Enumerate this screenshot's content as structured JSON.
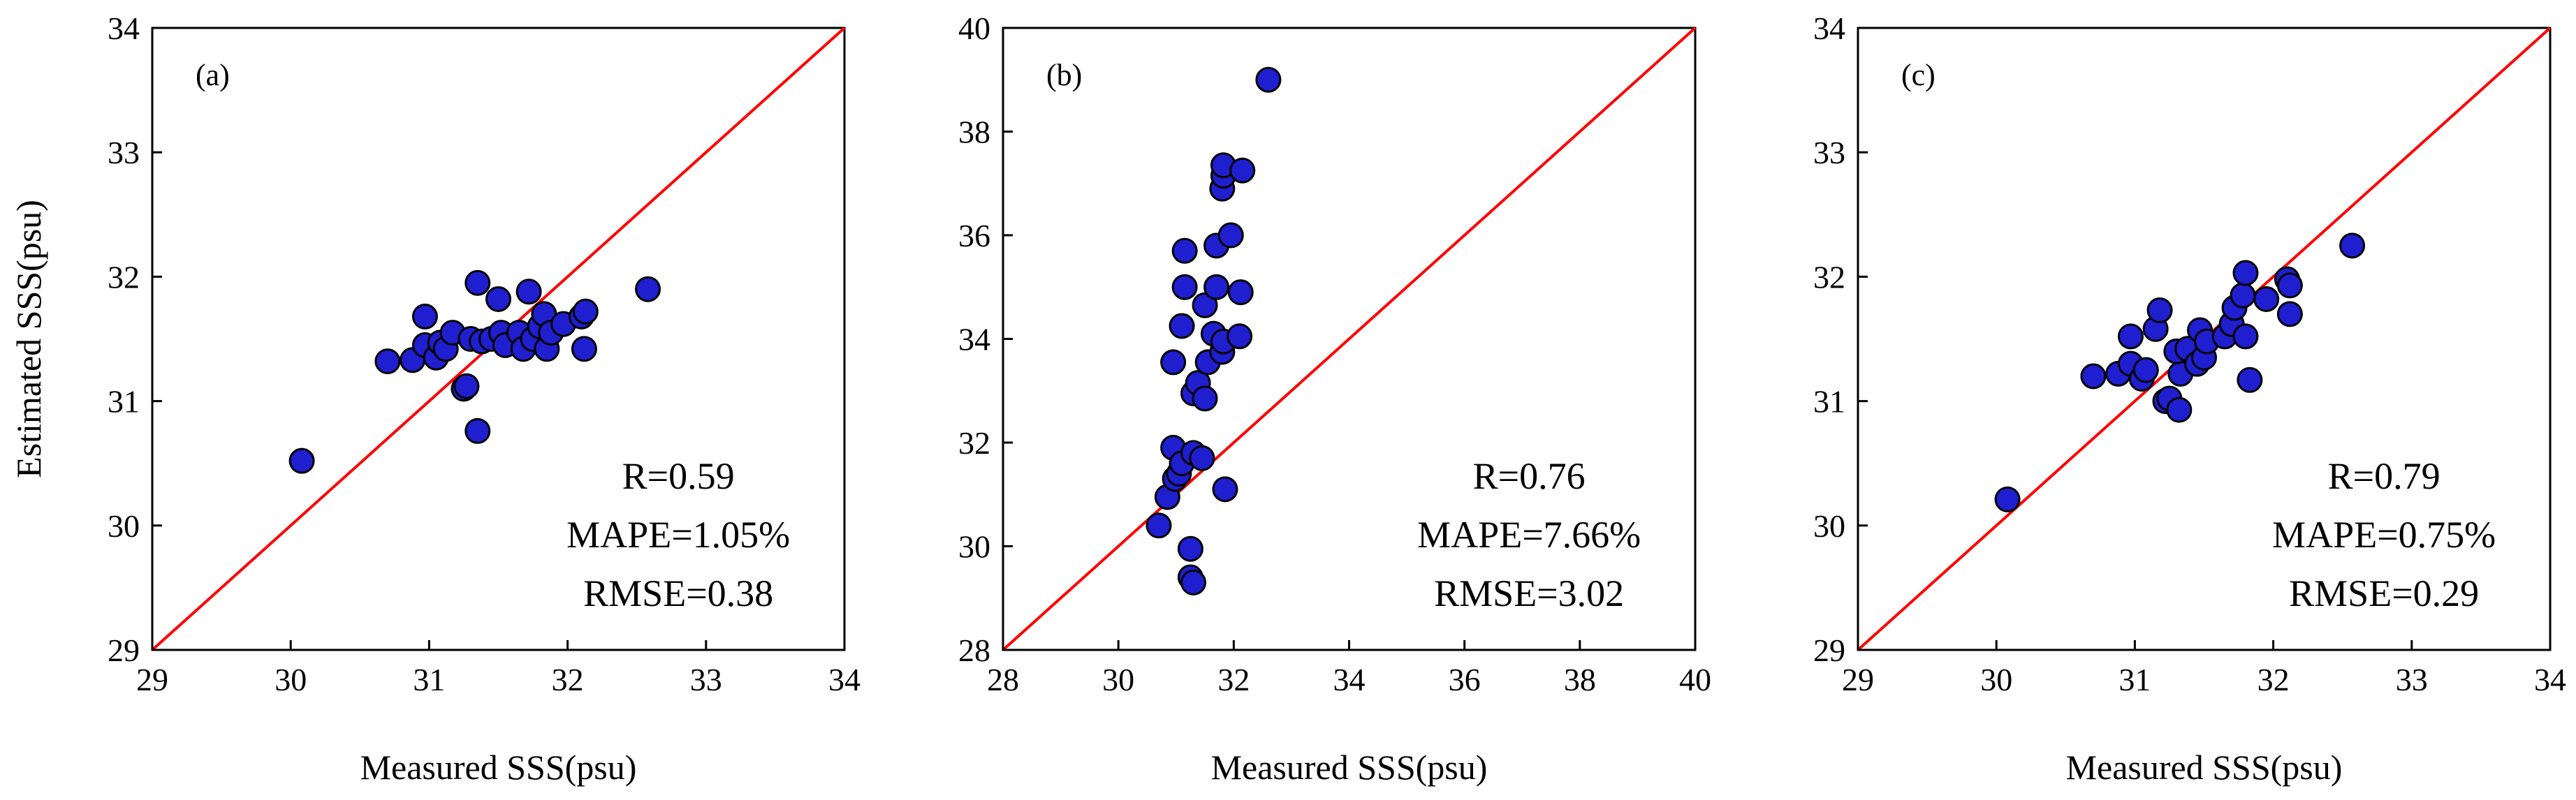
{
  "figure": {
    "background": "#ffffff",
    "marker_color": "#1f1fd0",
    "marker_edge": "#000000",
    "line_color": "#ff0000"
  },
  "chart_data": [
    {
      "type": "scatter",
      "panel_label": "(a)",
      "xlabel": "Measured SSS(psu)",
      "ylabel": "Estimated SSS(psu)",
      "xlim": [
        29,
        34
      ],
      "ylim": [
        29,
        34
      ],
      "xticks": [
        "29",
        "30",
        "31",
        "32",
        "33",
        "34"
      ],
      "yticks": [
        "29",
        "30",
        "31",
        "32",
        "33",
        "34"
      ],
      "reference_line": "1:1",
      "stats": {
        "r": "R=0.59",
        "mape": "MAPE=1.05%",
        "rmse": "RMSE=0.38"
      },
      "points": [
        [
          30.08,
          30.52
        ],
        [
          30.7,
          31.32
        ],
        [
          30.88,
          31.33
        ],
        [
          30.97,
          31.68
        ],
        [
          30.97,
          31.45
        ],
        [
          31.05,
          31.35
        ],
        [
          31.08,
          31.47
        ],
        [
          31.12,
          31.42
        ],
        [
          31.17,
          31.55
        ],
        [
          31.25,
          31.1
        ],
        [
          31.27,
          31.12
        ],
        [
          31.3,
          31.5
        ],
        [
          31.35,
          31.95
        ],
        [
          31.38,
          31.48
        ],
        [
          31.35,
          30.76
        ],
        [
          31.45,
          31.5
        ],
        [
          31.5,
          31.82
        ],
        [
          31.52,
          31.55
        ],
        [
          31.55,
          31.45
        ],
        [
          31.65,
          31.55
        ],
        [
          31.68,
          31.42
        ],
        [
          31.72,
          31.88
        ],
        [
          31.75,
          31.5
        ],
        [
          31.8,
          31.6
        ],
        [
          31.83,
          31.7
        ],
        [
          31.85,
          31.42
        ],
        [
          31.88,
          31.55
        ],
        [
          31.97,
          31.62
        ],
        [
          32.1,
          31.68
        ],
        [
          32.13,
          31.72
        ],
        [
          32.12,
          31.42
        ],
        [
          32.58,
          31.9
        ]
      ]
    },
    {
      "type": "scatter",
      "panel_label": "(b)",
      "xlabel": "Measured SSS(psu)",
      "ylabel": "",
      "xlim": [
        28,
        40
      ],
      "ylim": [
        28,
        40
      ],
      "xticks": [
        "28",
        "30",
        "32",
        "34",
        "36",
        "38",
        "40"
      ],
      "yticks": [
        "28",
        "30",
        "32",
        "34",
        "36",
        "38",
        "40"
      ],
      "reference_line": "1:1",
      "stats": {
        "r": "R=0.76",
        "mape": "MAPE=7.66%",
        "rmse": "RMSE=3.02"
      },
      "points": [
        [
          30.7,
          30.4
        ],
        [
          30.85,
          30.95
        ],
        [
          30.95,
          31.9
        ],
        [
          30.98,
          31.3
        ],
        [
          31.05,
          31.4
        ],
        [
          31.1,
          31.6
        ],
        [
          30.95,
          33.55
        ],
        [
          31.1,
          34.25
        ],
        [
          31.15,
          35.0
        ],
        [
          31.15,
          35.7
        ],
        [
          31.25,
          29.95
        ],
        [
          31.25,
          29.4
        ],
        [
          31.3,
          29.3
        ],
        [
          31.3,
          31.8
        ],
        [
          31.3,
          32.95
        ],
        [
          31.38,
          33.15
        ],
        [
          31.45,
          31.7
        ],
        [
          31.5,
          32.85
        ],
        [
          31.5,
          34.65
        ],
        [
          31.55,
          33.55
        ],
        [
          31.65,
          34.1
        ],
        [
          31.7,
          35.0
        ],
        [
          31.7,
          35.8
        ],
        [
          31.8,
          33.75
        ],
        [
          31.82,
          33.95
        ],
        [
          31.85,
          31.1
        ],
        [
          31.8,
          36.9
        ],
        [
          31.82,
          37.15
        ],
        [
          31.82,
          37.35
        ],
        [
          31.95,
          36.0
        ],
        [
          32.1,
          34.05
        ],
        [
          32.12,
          34.9
        ],
        [
          32.15,
          37.25
        ],
        [
          32.6,
          39.0
        ]
      ]
    },
    {
      "type": "scatter",
      "panel_label": "(c)",
      "xlabel": "Measured SSS(psu)",
      "ylabel": "",
      "xlim": [
        29,
        34
      ],
      "ylim": [
        29,
        34
      ],
      "xticks": [
        "29",
        "30",
        "31",
        "32",
        "33",
        "34"
      ],
      "yticks": [
        "29",
        "30",
        "31",
        "32",
        "33",
        "34"
      ],
      "reference_line": "1:1",
      "stats": {
        "r": "R=0.79",
        "mape": "MAPE=0.75%",
        "rmse": "RMSE=0.29"
      },
      "points": [
        [
          30.08,
          30.21
        ],
        [
          30.7,
          31.2
        ],
        [
          30.88,
          31.22
        ],
        [
          30.97,
          31.52
        ],
        [
          30.97,
          31.3
        ],
        [
          31.05,
          31.18
        ],
        [
          31.08,
          31.25
        ],
        [
          31.15,
          31.58
        ],
        [
          31.18,
          31.73
        ],
        [
          31.22,
          31.0
        ],
        [
          31.25,
          31.02
        ],
        [
          31.32,
          30.93
        ],
        [
          31.33,
          31.22
        ],
        [
          31.3,
          31.4
        ],
        [
          31.38,
          31.42
        ],
        [
          31.45,
          31.3
        ],
        [
          31.47,
          31.57
        ],
        [
          31.5,
          31.35
        ],
        [
          31.52,
          31.48
        ],
        [
          31.65,
          31.52
        ],
        [
          31.7,
          31.62
        ],
        [
          31.72,
          31.75
        ],
        [
          31.78,
          31.85
        ],
        [
          31.8,
          32.03
        ],
        [
          31.8,
          31.52
        ],
        [
          31.83,
          31.17
        ],
        [
          31.95,
          31.82
        ],
        [
          32.1,
          31.98
        ],
        [
          32.12,
          31.93
        ],
        [
          32.12,
          31.7
        ],
        [
          32.57,
          32.25
        ]
      ]
    }
  ]
}
